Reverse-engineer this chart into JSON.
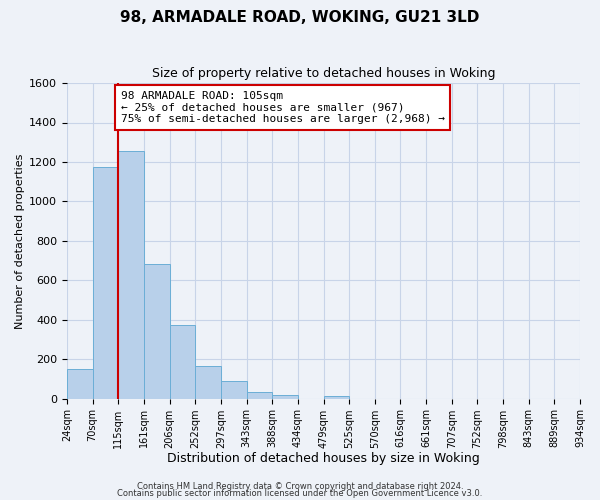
{
  "title": "98, ARMADALE ROAD, WOKING, GU21 3LD",
  "subtitle": "Size of property relative to detached houses in Woking",
  "xlabel": "Distribution of detached houses by size in Woking",
  "ylabel": "Number of detached properties",
  "bin_labels": [
    "24sqm",
    "70sqm",
    "115sqm",
    "161sqm",
    "206sqm",
    "252sqm",
    "297sqm",
    "343sqm",
    "388sqm",
    "434sqm",
    "479sqm",
    "525sqm",
    "570sqm",
    "616sqm",
    "661sqm",
    "707sqm",
    "752sqm",
    "798sqm",
    "843sqm",
    "889sqm",
    "934sqm"
  ],
  "bar_values": [
    152,
    1175,
    1258,
    683,
    375,
    163,
    90,
    35,
    20,
    0,
    15,
    0,
    0,
    0,
    0,
    0,
    0,
    0,
    0,
    0
  ],
  "bar_color": "#b8d0ea",
  "bar_edge_color": "#6baed6",
  "ylim": [
    0,
    1600
  ],
  "yticks": [
    0,
    200,
    400,
    600,
    800,
    1000,
    1200,
    1400,
    1600
  ],
  "vline_x_index": 2,
  "vline_color": "#cc0000",
  "annotation_text": "98 ARMADALE ROAD: 105sqm\n← 25% of detached houses are smaller (967)\n75% of semi-detached houses are larger (2,968) →",
  "annotation_box_color": "#ffffff",
  "annotation_box_edge": "#cc0000",
  "footer1": "Contains HM Land Registry data © Crown copyright and database right 2024.",
  "footer2": "Contains public sector information licensed under the Open Government Licence v3.0.",
  "grid_color": "#c8d4e8",
  "bg_color": "#eef2f8",
  "title_fontsize": 11,
  "subtitle_fontsize": 9,
  "xlabel_fontsize": 9,
  "ylabel_fontsize": 8,
  "tick_fontsize": 7,
  "footer_fontsize": 6,
  "annotation_fontsize": 8
}
